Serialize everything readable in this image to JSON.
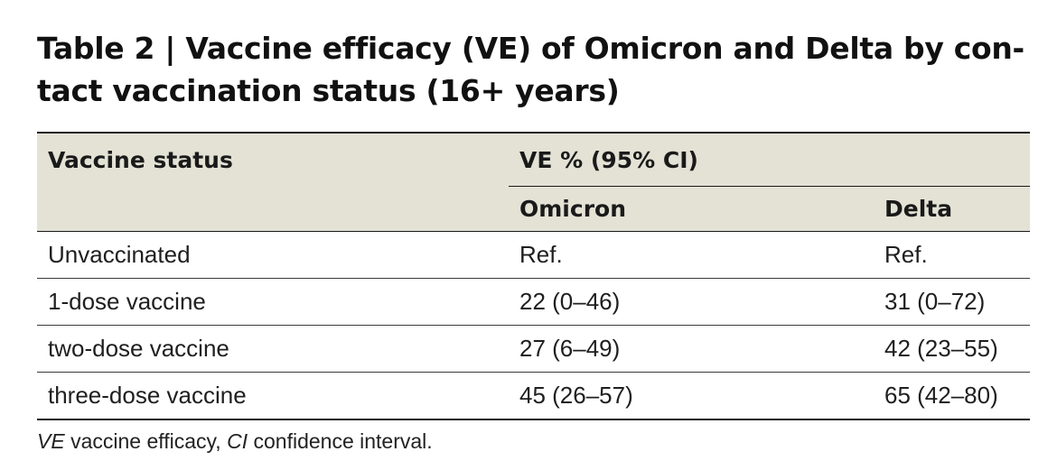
{
  "title": {
    "line1": "Table 2 | Vaccine efficacy (VE) of Omicron and Delta by con-",
    "line2": "tact vaccination status (16+ years)"
  },
  "table": {
    "header_status": "Vaccine status",
    "header_group": "VE % (95% CI)",
    "header_omicron": "Omicron",
    "header_delta": "Delta",
    "rows": [
      {
        "status": "Unvaccinated",
        "omicron": "Ref.",
        "delta": "Ref."
      },
      {
        "status": "1-dose vaccine",
        "omicron": "22 (0–46)",
        "delta": "31 (0–72)"
      },
      {
        "status": "two-dose vaccine",
        "omicron": "27 (6–49)",
        "delta": "42 (23–55)"
      },
      {
        "status": "three-dose vaccine",
        "omicron": "45 (26–57)",
        "delta": "65 (42–80)"
      }
    ]
  },
  "footnote": {
    "abbr1": "VE",
    "def1": " vaccine efficacy, ",
    "abbr2": "CI",
    "def2": " confidence interval."
  },
  "colors": {
    "header_background": "#e3e2d5",
    "rule": "#1a1a1a"
  }
}
